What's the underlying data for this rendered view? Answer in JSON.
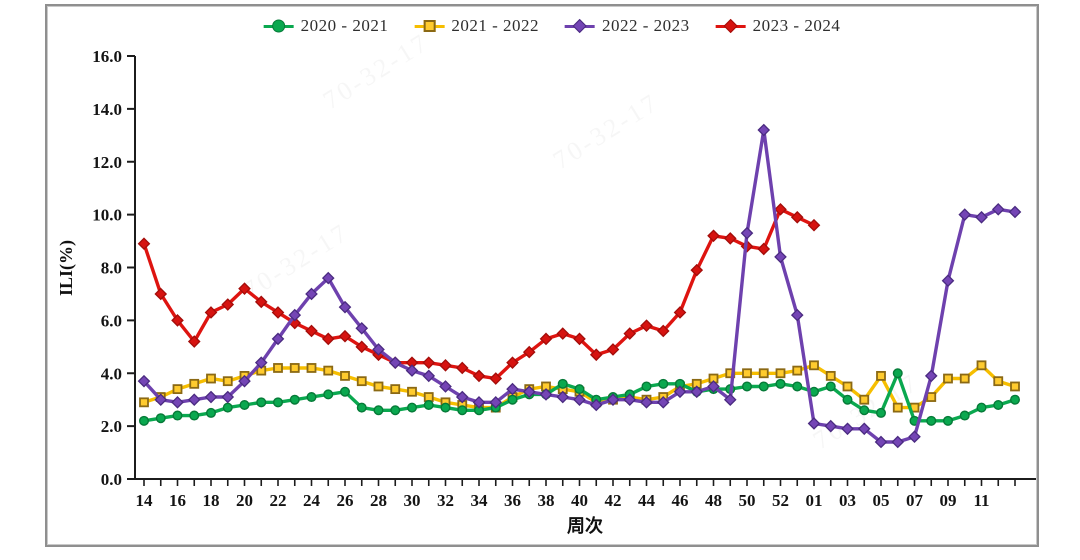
{
  "figure": {
    "y_axis_title": "ILI(%)",
    "x_axis_title": "周次",
    "watermark": "70-32-17"
  },
  "legend": [
    {
      "label": "2020 - 2021",
      "marker": "circle",
      "color": "#0aa84f",
      "marker_fill": "#0aa84f",
      "marker_stroke": "#067a38"
    },
    {
      "label": "2021 - 2022",
      "marker": "square",
      "color": "#f6be00",
      "marker_fill": "#ffcb2e",
      "marker_stroke": "#8b6914"
    },
    {
      "label": "2022 - 2023",
      "marker": "diamond",
      "color": "#6e41ae",
      "marker_fill": "#7445b5",
      "marker_stroke": "#4a2b80"
    },
    {
      "label": "2023 - 2024",
      "marker": "diamond",
      "color": "#de1410",
      "marker_fill": "#d61310",
      "marker_stroke": "#a30d0a"
    }
  ],
  "chart_data": {
    "type": "line",
    "title": "",
    "xlabel": "周次",
    "ylabel": "ILI(%)",
    "ylim": [
      0,
      16
    ],
    "grid": false,
    "legend_position": "top-center",
    "y_ticks": [
      0,
      2,
      4,
      6,
      8,
      10,
      12,
      14,
      16
    ],
    "categories": [
      "14",
      "15",
      "16",
      "17",
      "18",
      "19",
      "20",
      "21",
      "22",
      "23",
      "24",
      "25",
      "26",
      "27",
      "28",
      "29",
      "30",
      "31",
      "32",
      "33",
      "34",
      "35",
      "36",
      "37",
      "38",
      "39",
      "40",
      "41",
      "42",
      "43",
      "44",
      "45",
      "46",
      "47",
      "48",
      "49",
      "50",
      "51",
      "52",
      "53",
      "01",
      "02",
      "03",
      "04",
      "05",
      "06",
      "07",
      "08",
      "09",
      "10",
      "11",
      "12",
      "13"
    ],
    "x_labels_shown": [
      "14",
      "16",
      "18",
      "20",
      "22",
      "24",
      "26",
      "28",
      "30",
      "32",
      "34",
      "36",
      "38",
      "40",
      "42",
      "44",
      "46",
      "48",
      "50",
      "52",
      "01",
      "03",
      "05",
      "07",
      "09",
      "11"
    ],
    "series": [
      {
        "name": "2020 - 2021",
        "marker": "circle",
        "color": "#0aa84f",
        "marker_fill": "#0aa84f",
        "marker_stroke": "#067a38",
        "values": [
          2.2,
          2.3,
          2.4,
          2.4,
          2.5,
          2.7,
          2.8,
          2.9,
          2.9,
          3.0,
          3.1,
          3.2,
          3.3,
          2.7,
          2.6,
          2.6,
          2.7,
          2.8,
          2.7,
          2.6,
          2.6,
          2.7,
          3.0,
          3.2,
          3.2,
          3.6,
          3.4,
          3.0,
          3.1,
          3.2,
          3.5,
          3.6,
          3.6,
          3.3,
          3.4,
          3.4,
          3.5,
          3.5,
          3.6,
          3.5,
          3.3,
          3.5,
          3.0,
          2.6,
          2.5,
          4.0,
          2.2,
          2.2,
          2.2,
          2.4,
          2.7,
          2.8,
          3.0
        ]
      },
      {
        "name": "2021 - 2022",
        "marker": "square",
        "color": "#f6be00",
        "marker_fill": "#ffcb2e",
        "marker_stroke": "#8b6914",
        "values": [
          2.9,
          3.1,
          3.4,
          3.6,
          3.8,
          3.7,
          3.9,
          4.1,
          4.2,
          4.2,
          4.2,
          4.1,
          3.9,
          3.7,
          3.5,
          3.4,
          3.3,
          3.1,
          2.9,
          2.8,
          2.7,
          2.7,
          3.1,
          3.4,
          3.5,
          3.4,
          3.3,
          2.9,
          3.0,
          3.1,
          3.0,
          3.1,
          3.5,
          3.6,
          3.8,
          4.0,
          4.0,
          4.0,
          4.0,
          4.1,
          4.3,
          3.9,
          3.5,
          3.0,
          3.9,
          2.7,
          2.7,
          3.1,
          3.8,
          3.8,
          4.3,
          3.7,
          3.5
        ]
      },
      {
        "name": "2022 - 2023",
        "marker": "diamond",
        "color": "#6e41ae",
        "marker_fill": "#7445b5",
        "marker_stroke": "#4a2b80",
        "values": [
          3.7,
          3.0,
          2.9,
          3.0,
          3.1,
          3.1,
          3.7,
          4.4,
          5.3,
          6.2,
          7.0,
          7.6,
          6.5,
          5.7,
          4.9,
          4.4,
          4.1,
          3.9,
          3.5,
          3.1,
          2.9,
          2.9,
          3.4,
          3.3,
          3.2,
          3.1,
          3.0,
          2.8,
          3.0,
          3.0,
          2.9,
          2.9,
          3.3,
          3.3,
          3.5,
          3.0,
          9.3,
          13.2,
          8.4,
          6.2,
          2.1,
          2.0,
          1.9,
          1.9,
          1.4,
          1.4,
          1.6,
          3.9,
          7.5,
          10.0,
          9.9,
          10.2,
          10.1
        ]
      },
      {
        "name": "2023 - 2024",
        "marker": "diamond",
        "color": "#de1410",
        "marker_fill": "#d61310",
        "marker_stroke": "#a30d0a",
        "values": [
          8.9,
          7.0,
          6.0,
          5.2,
          6.3,
          6.6,
          7.2,
          6.7,
          6.3,
          5.9,
          5.6,
          5.3,
          5.4,
          5.0,
          4.7,
          4.4,
          4.4,
          4.4,
          4.3,
          4.2,
          3.9,
          3.8,
          4.4,
          4.8,
          5.3,
          5.5,
          5.3,
          4.7,
          4.9,
          5.5,
          5.8,
          5.6,
          6.3,
          7.9,
          9.2,
          9.1,
          8.8,
          8.7,
          10.2,
          9.9,
          9.6
        ]
      }
    ]
  }
}
